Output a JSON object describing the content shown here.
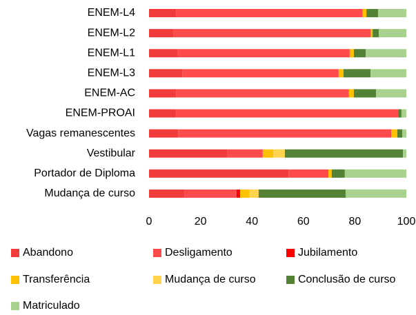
{
  "chart_data": {
    "type": "stacked-barh",
    "categories": [
      "ENEM-L4",
      "ENEM-L2",
      "ENEM-L1",
      "ENEM-L3",
      "ENEM-AC",
      "ENEM-PROAI",
      "Vagas remanescentes",
      "Vestibular",
      "Portador de Diploma",
      "Mudança de curso"
    ],
    "series": [
      {
        "name": "Abandono",
        "color": "#f23c3c",
        "values": [
          10.5,
          9.4,
          11,
          12.9,
          10.5,
          10.5,
          11.3,
          30.3,
          54.2,
          13.7
        ]
      },
      {
        "name": "Desligamento",
        "color": "#ff4b4b",
        "values": [
          72.5,
          76.7,
          67,
          60.8,
          67.2,
          86.3,
          82.8,
          13.9,
          15.5,
          20.3
        ]
      },
      {
        "name": "Jubilamento",
        "color": "#ff0000",
        "values": [
          0,
          0,
          0,
          0,
          0,
          0,
          0,
          0,
          0,
          1.4
        ]
      },
      {
        "name": "Transferência",
        "color": "#ffc000",
        "values": [
          1.5,
          0.8,
          1.6,
          1.9,
          1.9,
          0,
          2.4,
          4.1,
          1.3,
          3.5
        ]
      },
      {
        "name": "Mudança de curso",
        "color": "#ffd34d",
        "values": [
          0,
          0,
          0,
          0,
          0,
          0,
          0,
          4.5,
          0,
          3.7
        ]
      },
      {
        "name": "Conclusão de curso",
        "color": "#548235",
        "values": [
          4.5,
          2.4,
          4.6,
          10.5,
          8.6,
          1.3,
          1.9,
          45.9,
          5.1,
          33.8
        ]
      },
      {
        "name": "Matriculado",
        "color": "#a9d18e",
        "values": [
          11,
          10.7,
          15.8,
          13.9,
          11.8,
          1.9,
          1.6,
          1.3,
          23.9,
          23.6
        ]
      }
    ],
    "xlim": [
      0,
      100
    ],
    "xticks": [
      0,
      20,
      40,
      60,
      80,
      100
    ],
    "grid": false,
    "legend": "bottom"
  }
}
